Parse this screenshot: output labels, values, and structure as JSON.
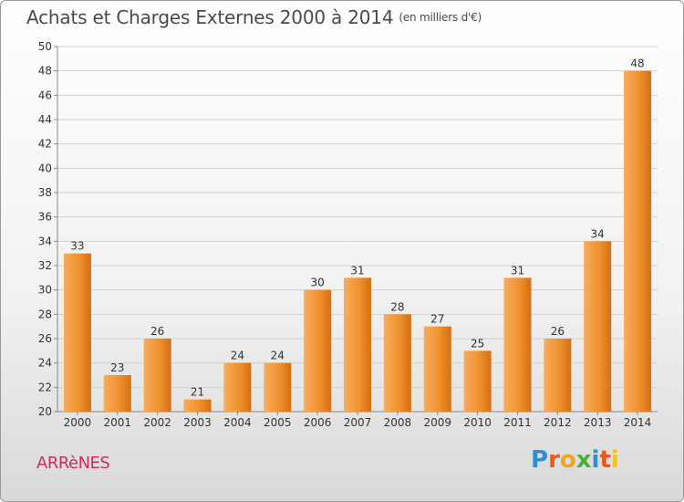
{
  "title": "Achats et Charges Externes 2000 à 2014",
  "subtitle": "(en milliers d'€)",
  "commune": "ARRèNES",
  "logo": {
    "letters": [
      "P",
      "r",
      "o",
      "x",
      "i",
      "t",
      "i"
    ],
    "colors": [
      "#2f8fd0",
      "#e85a1c",
      "#f2a21e",
      "#4fae3a",
      "#2f8fd0",
      "#e85a1c",
      "#f2c21e"
    ]
  },
  "colors": {
    "bar": "#f0922e",
    "bar_light": "#f7ad5f",
    "bar_dark": "#d46f14",
    "grid": "#d0d0d0",
    "axis_text": "#333333"
  },
  "chart_data": {
    "type": "bar",
    "categories": [
      "2000",
      "2001",
      "2002",
      "2003",
      "2004",
      "2005",
      "2006",
      "2007",
      "2008",
      "2009",
      "2010",
      "2011",
      "2012",
      "2013",
      "2014"
    ],
    "values": [
      33,
      23,
      26,
      21,
      24,
      24,
      30,
      31,
      28,
      27,
      25,
      31,
      26,
      34,
      48
    ],
    "ylim": [
      20,
      50
    ],
    "yticks": [
      20,
      22,
      24,
      26,
      28,
      30,
      32,
      34,
      36,
      38,
      40,
      42,
      44,
      46,
      48,
      50
    ],
    "grid": true,
    "data_labels": true
  }
}
